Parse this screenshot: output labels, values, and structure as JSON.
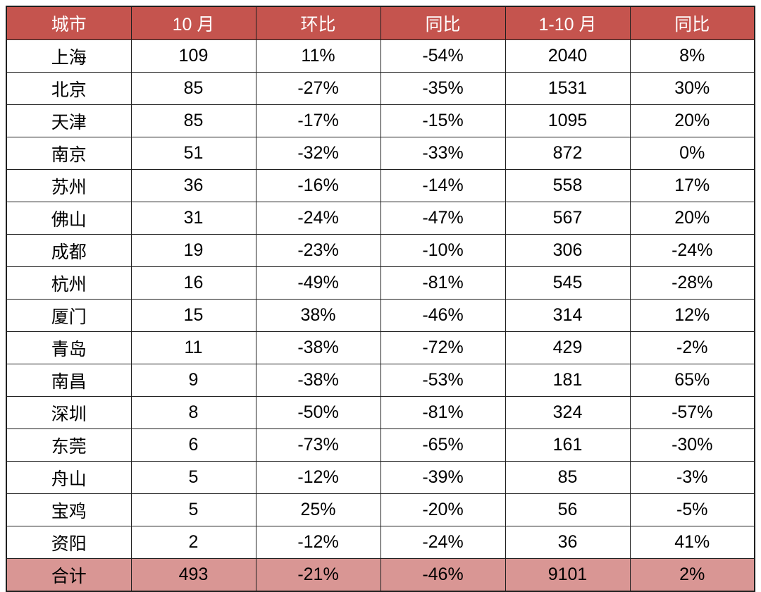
{
  "colors": {
    "header_bg": "#c5544e",
    "header_text": "#ffffff",
    "total_row_bg": "#d99694",
    "body_text": "#000000",
    "border": "#1f1f1f",
    "row_bg": "#ffffff"
  },
  "chart_data": {
    "type": "table",
    "columns": [
      "城市",
      "10 月",
      "环比",
      "同比",
      "1-10 月",
      "同比"
    ],
    "rows": [
      [
        "上海",
        "109",
        "11%",
        "-54%",
        "2040",
        "8%"
      ],
      [
        "北京",
        "85",
        "-27%",
        "-35%",
        "1531",
        "30%"
      ],
      [
        "天津",
        "85",
        "-17%",
        "-15%",
        "1095",
        "20%"
      ],
      [
        "南京",
        "51",
        "-32%",
        "-33%",
        "872",
        "0%"
      ],
      [
        "苏州",
        "36",
        "-16%",
        "-14%",
        "558",
        "17%"
      ],
      [
        "佛山",
        "31",
        "-24%",
        "-47%",
        "567",
        "20%"
      ],
      [
        "成都",
        "19",
        "-23%",
        "-10%",
        "306",
        "-24%"
      ],
      [
        "杭州",
        "16",
        "-49%",
        "-81%",
        "545",
        "-28%"
      ],
      [
        "厦门",
        "15",
        "38%",
        "-46%",
        "314",
        "12%"
      ],
      [
        "青岛",
        "11",
        "-38%",
        "-72%",
        "429",
        "-2%"
      ],
      [
        "南昌",
        "9",
        "-38%",
        "-53%",
        "181",
        "65%"
      ],
      [
        "深圳",
        "8",
        "-50%",
        "-81%",
        "324",
        "-57%"
      ],
      [
        "东莞",
        "6",
        "-73%",
        "-65%",
        "161",
        "-30%"
      ],
      [
        "舟山",
        "5",
        "-12%",
        "-39%",
        "85",
        "-3%"
      ],
      [
        "宝鸡",
        "5",
        "25%",
        "-20%",
        "56",
        "-5%"
      ],
      [
        "资阳",
        "2",
        "-12%",
        "-24%",
        "36",
        "41%"
      ]
    ],
    "total_row": [
      "合计",
      "493",
      "-21%",
      "-46%",
      "9101",
      "2%"
    ],
    "title": "",
    "layout": {
      "grid": true,
      "columns_count": 6,
      "header_position": "top",
      "total_position": "bottom"
    }
  }
}
